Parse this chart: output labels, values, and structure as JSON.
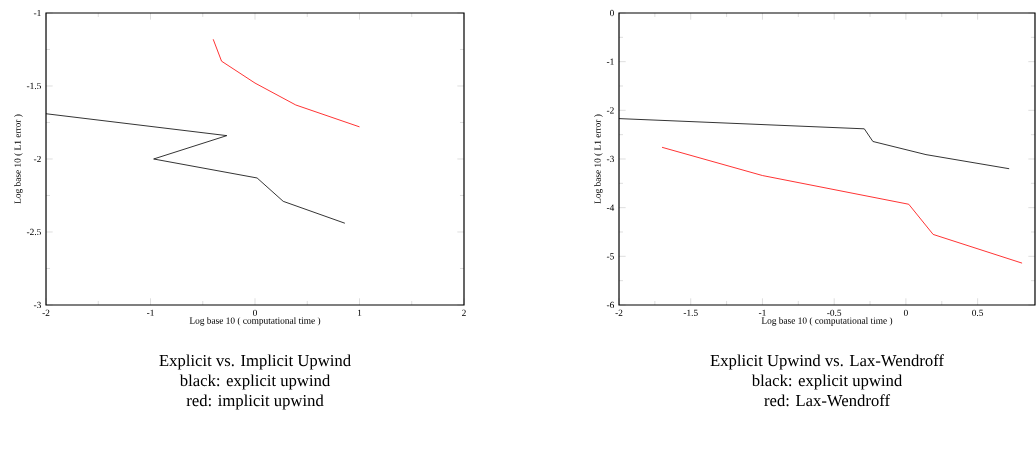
{
  "chart_data": [
    {
      "type": "line",
      "title": "Explicit vs. Implicit Upwind",
      "annotations": [
        "black: explicit upwind",
        "red: implicit upwind"
      ],
      "xlabel": "Log base 10 ( computational time )",
      "ylabel": "Log base 10 ( L1 error )",
      "xlim": [
        -2,
        2
      ],
      "ylim": [
        -3,
        -1
      ],
      "xticks": [
        -2,
        -1,
        0,
        1,
        2
      ],
      "yticks": [
        -3,
        -2.5,
        -2,
        -1.5,
        -1
      ],
      "series": [
        {
          "color": "#000000",
          "x": [
            -2.0,
            -0.27,
            -0.97,
            0.02,
            0.27,
            0.86
          ],
          "values": [
            -1.69,
            -1.84,
            -2.0,
            -2.13,
            -2.29,
            -2.44
          ]
        },
        {
          "color": "#ff0000",
          "x": [
            -0.4,
            -0.32,
            0,
            0.39,
            1.0
          ],
          "values": [
            -1.18,
            -1.33,
            -1.48,
            -1.63,
            -1.78
          ]
        }
      ]
    },
    {
      "type": "line",
      "title": "Explicit Upwind vs. Lax-Wendroff",
      "annotations": [
        "black: explicit upwind",
        "red: Lax-Wendroff"
      ],
      "xlabel": "Log base 10 ( computational time )",
      "ylabel": "Log base 10 ( L1 error )",
      "xlim": [
        -2,
        0.9
      ],
      "ylim": [
        -6,
        0
      ],
      "xticks": [
        -2,
        -1.5,
        -1,
        -0.5,
        0,
        0.5
      ],
      "yticks": [
        -6,
        -5,
        -4,
        -3,
        -2,
        -1,
        0
      ],
      "series": [
        {
          "color": "#000000",
          "x": [
            -2.0,
            -0.29,
            -0.23,
            0.14,
            0.72
          ],
          "values": [
            -2.17,
            -2.38,
            -2.64,
            -2.91,
            -3.2
          ]
        },
        {
          "color": "#ff0000",
          "x": [
            -1.7,
            -1.0,
            0.02,
            0.19,
            0.81
          ],
          "values": [
            -2.76,
            -3.34,
            -3.93,
            -4.55,
            -5.14
          ]
        }
      ]
    }
  ]
}
